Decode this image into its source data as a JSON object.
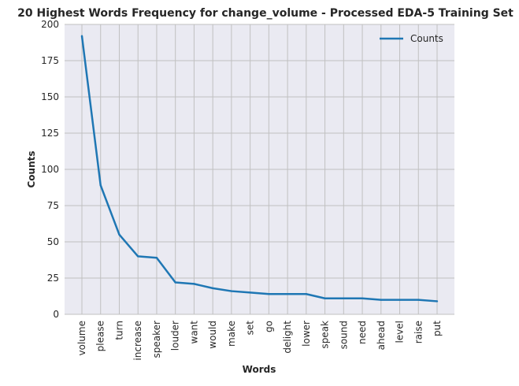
{
  "chart_data": {
    "type": "line",
    "title": "20 Highest Words Frequency for change_volume - Processed EDA-5 Training Set",
    "xlabel": "Words",
    "ylabel": "Counts",
    "categories": [
      "volume",
      "please",
      "turn",
      "increase",
      "speaker",
      "louder",
      "want",
      "would",
      "make",
      "set",
      "go",
      "delight",
      "lower",
      "speak",
      "sound",
      "need",
      "ahead",
      "level",
      "raise",
      "put"
    ],
    "series": [
      {
        "name": "Counts",
        "values": [
          192,
          89,
          55,
          40,
          39,
          22,
          21,
          18,
          16,
          15,
          14,
          14,
          14,
          11,
          11,
          11,
          10,
          10,
          10,
          9
        ]
      }
    ],
    "ylim": [
      0,
      200
    ],
    "yticks": [
      0,
      25,
      50,
      75,
      100,
      125,
      150,
      175,
      200
    ],
    "grid": true,
    "legend_position": "top-right",
    "colors": {
      "line": "#1f77b4",
      "plot_background": "#eaeaf2",
      "grid": "#c0c0c0",
      "text": "#262626"
    }
  }
}
